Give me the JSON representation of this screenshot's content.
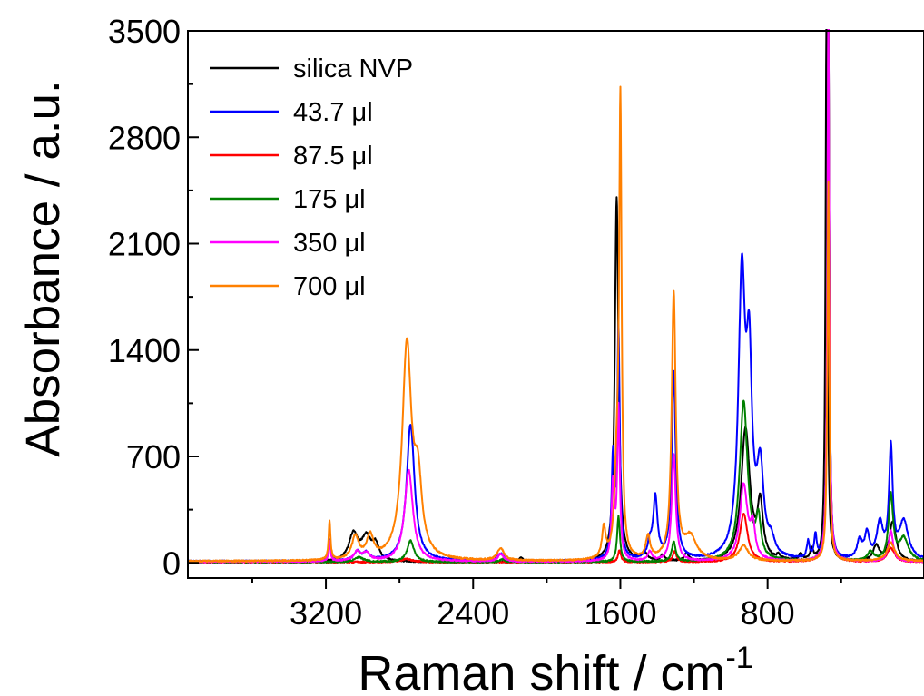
{
  "chart_data": {
    "type": "line",
    "title": "",
    "xlabel": "Raman shift / cm",
    "xlabel_superscript": "-1",
    "ylabel": "Absorbance / a.u.",
    "xlim": [
      3950,
      -50
    ],
    "x_reversed": true,
    "ylim": [
      -100,
      3500
    ],
    "x_ticks": [
      3200,
      2400,
      1600,
      800
    ],
    "x_tick_labels": [
      "3200",
      "2400",
      "1600",
      "800"
    ],
    "y_ticks": [
      0,
      700,
      1400,
      2100,
      2800,
      3500
    ],
    "y_tick_labels": [
      "0",
      "700",
      "1400",
      "2100",
      "2800",
      "3500"
    ],
    "grid": false,
    "legend_position": "top-left",
    "series": [
      {
        "name": "silica NVP",
        "color": "#000000",
        "baseline": 5,
        "peaks": [
          [
            3050,
            180,
            30
          ],
          [
            2980,
            150,
            30
          ],
          [
            2930,
            100,
            22
          ],
          [
            2140,
            25,
            15
          ],
          [
            1620,
            2400,
            12
          ],
          [
            1470,
            50,
            20
          ],
          [
            1370,
            40,
            14
          ],
          [
            1240,
            50,
            14
          ],
          [
            920,
            870,
            28
          ],
          [
            840,
            350,
            18
          ],
          [
            740,
            25,
            12
          ],
          [
            620,
            45,
            10
          ],
          [
            560,
            70,
            10
          ],
          [
            480,
            3600,
            6
          ],
          [
            210,
            100,
            20
          ],
          [
            120,
            260,
            22
          ]
        ]
      },
      {
        "name": "43.7 μl",
        "color": "#0000ff",
        "baseline": 10,
        "peaks": [
          [
            3180,
            140,
            7
          ],
          [
            3030,
            60,
            20
          ],
          [
            2980,
            50,
            20
          ],
          [
            2740,
            900,
            26
          ],
          [
            2250,
            50,
            18
          ],
          [
            1640,
            650,
            9
          ],
          [
            1610,
            1500,
            8
          ],
          [
            1440,
            90,
            14
          ],
          [
            1410,
            400,
            14
          ],
          [
            1310,
            1230,
            13
          ],
          [
            940,
            1800,
            22
          ],
          [
            900,
            1150,
            18
          ],
          [
            840,
            550,
            22
          ],
          [
            780,
            90,
            20
          ],
          [
            580,
            110,
            8
          ],
          [
            540,
            150,
            8
          ],
          [
            470,
            3600,
            6
          ],
          [
            300,
            120,
            16
          ],
          [
            260,
            160,
            15
          ],
          [
            190,
            230,
            20
          ],
          [
            130,
            720,
            12
          ],
          [
            60,
            250,
            30
          ]
        ]
      },
      {
        "name": "87.5 μl",
        "color": "#ff0000",
        "baseline": 5,
        "peaks": [
          [
            2760,
            20,
            35
          ],
          [
            1605,
            80,
            9
          ],
          [
            1305,
            70,
            12
          ],
          [
            930,
            320,
            25
          ],
          [
            470,
            3600,
            6
          ],
          [
            130,
            90,
            25
          ]
        ]
      },
      {
        "name": "175 μl",
        "color": "#008000",
        "baseline": 5,
        "peaks": [
          [
            3020,
            30,
            30
          ],
          [
            2740,
            140,
            22
          ],
          [
            2240,
            20,
            15
          ],
          [
            1610,
            300,
            9
          ],
          [
            1310,
            130,
            12
          ],
          [
            930,
            1050,
            26
          ],
          [
            850,
            250,
            15
          ],
          [
            470,
            3600,
            6
          ],
          [
            240,
            60,
            20
          ],
          [
            130,
            430,
            15
          ],
          [
            60,
            150,
            30
          ]
        ]
      },
      {
        "name": "350 μl",
        "color": "#ff00ff",
        "baseline": 8,
        "peaks": [
          [
            3180,
            130,
            6
          ],
          [
            3030,
            60,
            22
          ],
          [
            2980,
            50,
            22
          ],
          [
            2750,
            600,
            27
          ],
          [
            2250,
            50,
            18
          ],
          [
            1640,
            500,
            9
          ],
          [
            1610,
            1000,
            8
          ],
          [
            1440,
            60,
            14
          ],
          [
            1310,
            700,
            13
          ],
          [
            930,
            500,
            25
          ],
          [
            880,
            200,
            15
          ],
          [
            470,
            3600,
            6
          ],
          [
            130,
            200,
            15
          ]
        ]
      },
      {
        "name": "700 μl",
        "color": "#ff8000",
        "baseline": 10,
        "peaks": [
          [
            3180,
            260,
            6
          ],
          [
            3040,
            150,
            22
          ],
          [
            2960,
            150,
            22
          ],
          [
            2760,
            1400,
            30
          ],
          [
            2700,
            450,
            25
          ],
          [
            2250,
            80,
            22
          ],
          [
            1690,
            200,
            12
          ],
          [
            1620,
            500,
            14
          ],
          [
            1600,
            2950,
            8
          ],
          [
            1450,
            150,
            14
          ],
          [
            1310,
            1750,
            13
          ],
          [
            1220,
            150,
            40
          ],
          [
            930,
            100,
            30
          ],
          [
            470,
            2500,
            6
          ],
          [
            130,
            120,
            25
          ]
        ]
      }
    ]
  }
}
